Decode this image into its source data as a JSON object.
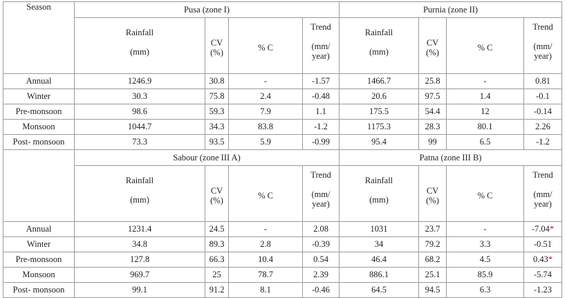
{
  "table": {
    "season_header": "Season",
    "blocks": [
      {
        "zones": [
          {
            "name": "Pusa (zone I)",
            "columns": [
              [
                "Rainfall",
                "(mm)"
              ],
              [
                "CV",
                "(%)"
              ],
              [
                "% C"
              ],
              [
                "Trend",
                "(mm/",
                "year)"
              ]
            ]
          },
          {
            "name": "Purnia (zone II)",
            "columns": [
              [
                "Rainfall",
                "(mm)"
              ],
              [
                "CV",
                "(%)"
              ],
              [
                "% C"
              ],
              [
                "Trend",
                "(mm/",
                "year)"
              ]
            ]
          }
        ],
        "rows": [
          [
            "Annual",
            "1246.9",
            "30.8",
            "-",
            "-1.57",
            "1466.7",
            "25.8",
            "-",
            "0.81"
          ],
          [
            "Winter",
            "30.3",
            "75.8",
            "2.4",
            "-0.48",
            "20.6",
            "97.5",
            "1.4",
            "-0.1"
          ],
          [
            "Pre-monsoon",
            "98.6",
            "59.3",
            "7.9",
            "1.1",
            "175.5",
            "54.4",
            "12",
            "-0.14"
          ],
          [
            "Monsoon",
            "1044.7",
            "34.3",
            "83.8",
            "-1.2",
            "1175.3",
            "28.3",
            "80.1",
            "2.26"
          ],
          [
            "Post- monsoon",
            "73.3",
            "93.5",
            "5.9",
            "-0.99",
            "95.4",
            "99",
            "6.5",
            "-1.2"
          ]
        ]
      },
      {
        "zones": [
          {
            "name": "Sabour (zone III A)",
            "columns": [
              [
                "Rainfall",
                "(mm)"
              ],
              [
                "CV",
                "(%)"
              ],
              [
                "% C"
              ],
              [
                "Trend",
                "(mm/",
                "year)"
              ]
            ]
          },
          {
            "name": "Patna (zone III B)",
            "columns": [
              [
                "Rainfall",
                "(mm)"
              ],
              [
                "CV",
                "(%)"
              ],
              [
                "% C"
              ],
              [
                "Trend",
                "(mm/",
                "year)"
              ]
            ]
          }
        ],
        "rows": [
          [
            "Annual",
            "1231.4",
            "24.5",
            "-",
            "2.08",
            "1031",
            "23.7",
            "-",
            {
              "text": "-7.04",
              "mark": "*"
            }
          ],
          [
            "Winter",
            "34.8",
            "89.3",
            "2.8",
            "-0.39",
            "34",
            "79.2",
            "3.3",
            "-0.51"
          ],
          [
            "Pre-monsoon",
            "127.8",
            "66.3",
            "10.4",
            "0.54",
            "46.4",
            "68.2",
            "4.5",
            {
              "text": "0.43",
              "mark": "*"
            }
          ],
          [
            "Monsoon",
            "969.7",
            "25",
            "78.7",
            "2.39",
            "886.1",
            "25.1",
            "85.9",
            "-5.74"
          ],
          [
            "Post- monsoon",
            "99.1",
            "91.2",
            "8.1",
            "-0.46",
            "64.5",
            "94.5",
            "6.3",
            "-1.23"
          ]
        ]
      }
    ]
  }
}
